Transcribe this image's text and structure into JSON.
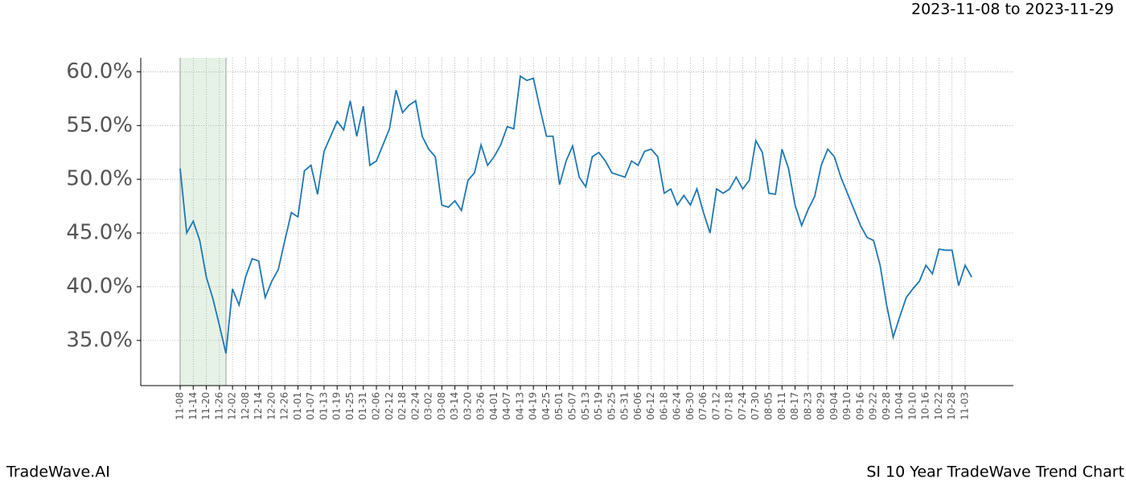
{
  "header": {
    "date_range": "2023-11-08 to 2023-11-29"
  },
  "footer": {
    "brand": "TradeWave.AI",
    "chart_name": "SI 10 Year TradeWave Trend Chart"
  },
  "chart_data": {
    "type": "line",
    "categories": [
      "11-08",
      null,
      "11-14",
      null,
      "11-20",
      null,
      "11-26",
      null,
      "12-02",
      null,
      "12-08",
      null,
      "12-14",
      null,
      "12-20",
      null,
      "12-26",
      null,
      "01-01",
      null,
      "01-07",
      null,
      "01-13",
      null,
      "01-19",
      null,
      "01-25",
      null,
      "01-31",
      null,
      "02-06",
      null,
      "02-12",
      null,
      "02-18",
      null,
      "02-24",
      null,
      "03-02",
      null,
      "03-08",
      null,
      "03-14",
      null,
      "03-20",
      null,
      "03-26",
      null,
      "04-01",
      null,
      "04-07",
      null,
      "04-13",
      null,
      "04-19",
      null,
      "04-25",
      null,
      "05-01",
      null,
      "05-07",
      null,
      "05-13",
      null,
      "05-19",
      null,
      "05-25",
      null,
      "05-31",
      null,
      "06-06",
      null,
      "06-12",
      null,
      "06-18",
      null,
      "06-24",
      null,
      "06-30",
      null,
      "07-06",
      null,
      "07-12",
      null,
      "07-18",
      null,
      "07-24",
      null,
      "07-30",
      null,
      "08-05",
      null,
      "08-11",
      null,
      "08-17",
      null,
      "08-23",
      null,
      "08-29",
      null,
      "09-04",
      null,
      "09-10",
      null,
      "09-16",
      null,
      "09-22",
      null,
      "09-28",
      null,
      "10-04",
      null,
      "10-10",
      null,
      "10-16",
      null,
      "10-22",
      null,
      "10-28",
      null,
      "11-03",
      null
    ],
    "series": [
      {
        "color": "#1f77b4",
        "values": [
          51.0,
          45.0,
          46.1,
          44.3,
          40.9,
          38.9,
          36.4,
          33.8,
          39.8,
          38.3,
          40.9,
          42.6,
          42.4,
          39.0,
          40.5,
          41.6,
          44.3,
          46.9,
          46.5,
          50.8,
          51.3,
          48.6,
          52.6,
          54.0,
          55.4,
          54.6,
          57.3,
          54.0,
          56.8,
          51.3,
          51.7,
          53.2,
          54.7,
          58.3,
          56.2,
          56.9,
          57.3,
          54.0,
          52.8,
          52.1,
          47.6,
          47.4,
          48.0,
          47.1,
          49.9,
          50.6,
          53.2,
          51.3,
          52.1,
          53.2,
          54.9,
          54.7,
          59.6,
          59.2,
          59.4,
          56.6,
          54.0,
          54.0,
          49.5,
          51.7,
          53.1,
          50.2,
          49.3,
          52.1,
          52.5,
          51.7,
          50.6,
          50.4,
          50.2,
          51.7,
          51.3,
          52.6,
          52.8,
          52.1,
          48.7,
          49.1,
          47.6,
          48.5,
          47.6,
          49.1,
          46.9,
          45.0,
          49.1,
          48.7,
          49.1,
          50.2,
          49.1,
          49.9,
          53.6,
          52.5,
          48.7,
          48.6,
          52.8,
          51.0,
          47.6,
          45.7,
          47.2,
          48.4,
          51.3,
          52.8,
          52.1,
          50.2,
          48.7,
          47.2,
          45.7,
          44.6,
          44.3,
          42.0,
          38.3,
          35.3,
          37.2,
          39.0,
          39.8,
          40.5,
          42.0,
          41.2,
          43.5,
          43.4,
          43.4,
          40.1,
          42.0,
          40.9
        ]
      }
    ],
    "shade": {
      "start": 0,
      "end": 7,
      "color": "#e6f2e6"
    },
    "ylim": [
      30.8,
      61.3
    ],
    "yticks": [
      {
        "value": 35,
        "label": "35.0%"
      },
      {
        "value": 40,
        "label": "40.0%"
      },
      {
        "value": 45,
        "label": "45.0%"
      },
      {
        "value": 50,
        "label": "50.0%"
      },
      {
        "value": 55,
        "label": "55.0%"
      },
      {
        "value": 60,
        "label": "60.0%"
      }
    ],
    "grid": true
  }
}
